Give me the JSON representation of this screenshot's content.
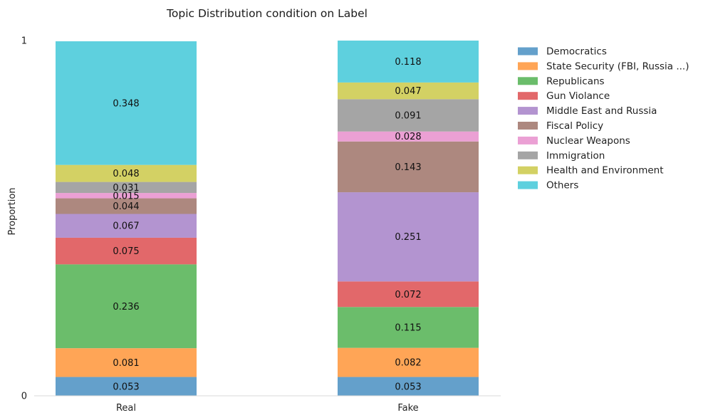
{
  "chart_data": {
    "type": "bar",
    "stacked": true,
    "title": "Topic Distribution condition on Label",
    "xlabel": "",
    "ylabel": "Proportion",
    "ylim": [
      0,
      1
    ],
    "y_ticks": [
      "0",
      "1"
    ],
    "grid": false,
    "legend_position": "top-right outside",
    "categories": [
      "Real",
      "Fake"
    ],
    "series": [
      {
        "name": "Democratics",
        "color": "#64a0cb",
        "values": [
          0.053,
          0.053
        ],
        "labels": [
          "0.053",
          "0.053"
        ]
      },
      {
        "name": "State Security (FBI, Russia ...)",
        "color": "#ffa556",
        "values": [
          0.081,
          0.082
        ],
        "labels": [
          "0.081",
          "0.082"
        ]
      },
      {
        "name": "Republicans",
        "color": "#6bbd6b",
        "values": [
          0.236,
          0.115
        ],
        "labels": [
          "0.236",
          "0.115"
        ]
      },
      {
        "name": "Gun Violance",
        "color": "#e2686a",
        "values": [
          0.075,
          0.072
        ],
        "labels": [
          "0.075",
          "0.072"
        ]
      },
      {
        "name": "Middle East and Russia",
        "color": "#b394d0",
        "values": [
          0.067,
          0.251
        ],
        "labels": [
          "0.067",
          "0.251"
        ]
      },
      {
        "name": "Fiscal Policy",
        "color": "#ad887f",
        "values": [
          0.044,
          0.143
        ],
        "labels": [
          "0.044",
          "0.143"
        ]
      },
      {
        "name": "Nuclear Weapons",
        "color": "#eba0d4",
        "values": [
          0.015,
          0.028
        ],
        "labels": [
          "0.015",
          "0.028"
        ]
      },
      {
        "name": "Immigration",
        "color": "#a5a5a5",
        "values": [
          0.031,
          0.091
        ],
        "labels": [
          "0.031",
          "0.091"
        ]
      },
      {
        "name": "Health and Environment",
        "color": "#d3d164",
        "values": [
          0.048,
          0.047
        ],
        "labels": [
          "0.048",
          "0.047"
        ]
      },
      {
        "name": "Others",
        "color": "#5ed0de",
        "values": [
          0.348,
          0.118
        ],
        "labels": [
          "0.348",
          "0.118"
        ]
      }
    ]
  }
}
